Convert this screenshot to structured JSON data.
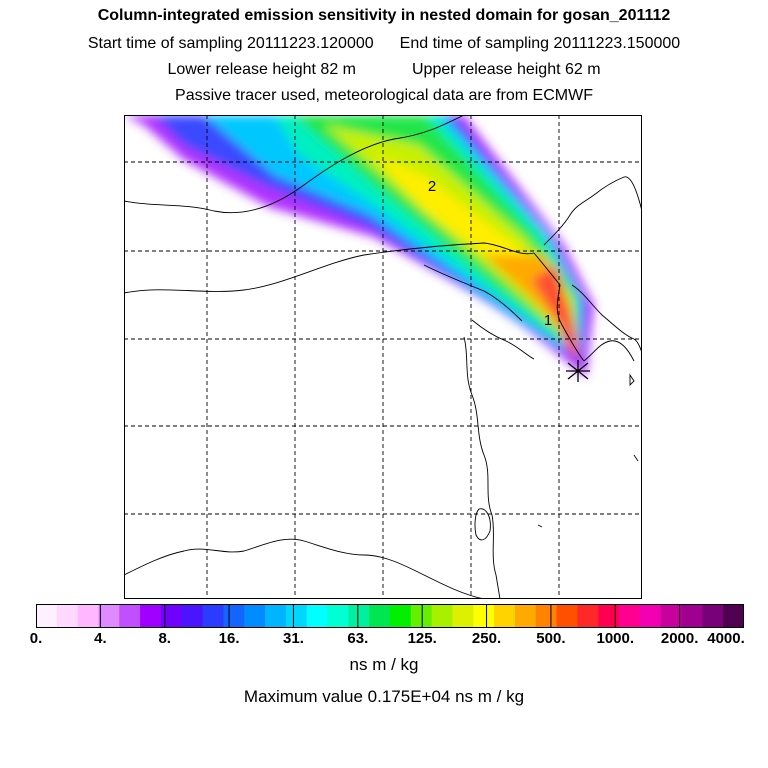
{
  "header": {
    "title": "Column-integrated emission sensitivity in nested domain for gosan_201112",
    "start_label": "Start time of sampling 20111223.120000",
    "end_label": "End time of sampling 20111223.150000",
    "lower_label": "Lower release height   82 m",
    "upper_label": "Upper release height   62 m",
    "note": "Passive tracer used, meteorological data are from ECMWF"
  },
  "map": {
    "annotations": [
      "1",
      "2"
    ],
    "receptor_marker": "receptor-star-icon"
  },
  "colorbar": {
    "colors": [
      "#fff0ff",
      "#ffd8ff",
      "#ffb8ff",
      "#e08aff",
      "#c050ff",
      "#a000ff",
      "#7000ff",
      "#4b14ff",
      "#2c3cff",
      "#1464ff",
      "#008cff",
      "#00b4ff",
      "#00d7ff",
      "#00ffff",
      "#00ffd2",
      "#00f0a0",
      "#00e650",
      "#00f000",
      "#66f000",
      "#a8f000",
      "#ddf000",
      "#ffff00",
      "#ffd200",
      "#ffaa00",
      "#ff8200",
      "#ff5000",
      "#ff2828",
      "#ff0050",
      "#ff0090",
      "#f000b0",
      "#c8009e",
      "#a00090",
      "#780078",
      "#500050"
    ],
    "tick_labels": [
      "0.",
      "4.",
      "8.",
      "16.",
      "31.",
      "63.",
      "125.",
      "250.",
      "500.",
      "1000.",
      "2000.",
      "4000."
    ],
    "units": "ns m / kg"
  },
  "footer": {
    "max_value": "Maximum value  0.175E+04 ns m / kg"
  }
}
